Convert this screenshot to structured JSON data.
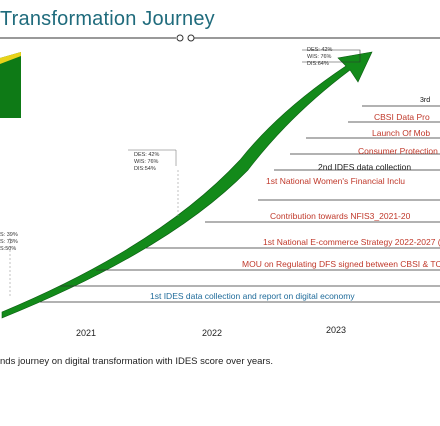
{
  "title": "Transformation Journey",
  "colors": {
    "accent_green": "#1a8a1e",
    "dark_green": "#0b5c12",
    "title_teal": "#1f6b7c",
    "milestone_red": "#c0392b",
    "milestone_blue": "#1f6b9a"
  },
  "scores": {
    "left": [
      "S: 39%",
      "S: 78%",
      "S:50%"
    ],
    "middle": [
      "DES: 42%",
      "WIS: 76%",
      "DIS:54%"
    ],
    "top": [
      "DES: 42%",
      "WIS: 76%",
      "DIS:64%"
    ]
  },
  "milestones": [
    {
      "text": "3rd"
    },
    {
      "text": "CBSI Data Pro"
    },
    {
      "text": "Launch Of Mob"
    },
    {
      "text": "Consumer Protection"
    },
    {
      "text": "2nd IDES data collection"
    },
    {
      "text": "1st National Women's Financial Inclu"
    },
    {
      "text": "Contribution towards NFIS3_2021-20"
    },
    {
      "text": "1st National E-commerce Strategy 2022-2027 ("
    },
    {
      "text": "MOU on Regulating DFS signed between CBSI & TC"
    },
    {
      "text": "1st IDES data collection and report on digital economy"
    }
  ],
  "years": [
    "2021",
    "2022",
    "2023"
  ],
  "caption": "nds journey on digital transformation with IDES score over years."
}
